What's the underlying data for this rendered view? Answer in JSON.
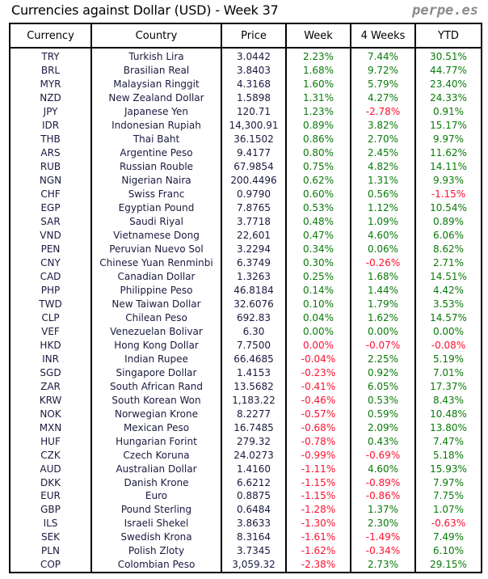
{
  "title": "Currencies against Dollar (USD) - Week 37",
  "brand": "perpe.es",
  "colors": {
    "positive": "#0a7a0a",
    "negative": "#ff1030"
  },
  "columns": [
    "Currency",
    "Country",
    "Price",
    "Week",
    "4 Weeks",
    "YTD"
  ],
  "rows": [
    {
      "code": "TRY",
      "country": "Turkish Lira",
      "price": "3.0442",
      "week": "2.23%",
      "w4": "7.44%",
      "ytd": "30.51%"
    },
    {
      "code": "BRL",
      "country": "Brasilian Real",
      "price": "3.8403",
      "week": "1.68%",
      "w4": "9.72%",
      "ytd": "44.77%"
    },
    {
      "code": "MYR",
      "country": "Malaysian Ringgit",
      "price": "4.3168",
      "week": "1.60%",
      "w4": "5.79%",
      "ytd": "23.40%"
    },
    {
      "code": "NZD",
      "country": "New Zealand Dollar",
      "price": "1.5898",
      "week": "1.31%",
      "w4": "4.27%",
      "ytd": "24.33%"
    },
    {
      "code": "JPY",
      "country": "Japanese Yen",
      "price": "120.71",
      "week": "1.23%",
      "w4": "-2.78%",
      "ytd": "0.91%"
    },
    {
      "code": "IDR",
      "country": "Indonesian Rupiah",
      "price": "14,300.91",
      "week": "0.89%",
      "w4": "3.82%",
      "ytd": "15.17%"
    },
    {
      "code": "THB",
      "country": "Thai Baht",
      "price": "36.1502",
      "week": "0.86%",
      "w4": "2.70%",
      "ytd": "9.97%"
    },
    {
      "code": "ARS",
      "country": "Argentine Peso",
      "price": "9.4177",
      "week": "0.80%",
      "w4": "2.45%",
      "ytd": "11.62%"
    },
    {
      "code": "RUB",
      "country": "Russian Rouble",
      "price": "67.9854",
      "week": "0.75%",
      "w4": "4.82%",
      "ytd": "14.11%"
    },
    {
      "code": "NGN",
      "country": "Nigerian Naira",
      "price": "200.4496",
      "week": "0.62%",
      "w4": "1.31%",
      "ytd": "9.93%"
    },
    {
      "code": "CHF",
      "country": "Swiss Franc",
      "price": "0.9790",
      "week": "0.60%",
      "w4": "0.56%",
      "ytd": "-1.15%"
    },
    {
      "code": "EGP",
      "country": "Egyptian Pound",
      "price": "7.8765",
      "week": "0.53%",
      "w4": "1.12%",
      "ytd": "10.54%"
    },
    {
      "code": "SAR",
      "country": "Saudi Riyal",
      "price": "3.7718",
      "week": "0.48%",
      "w4": "1.09%",
      "ytd": "0.89%"
    },
    {
      "code": "VND",
      "country": "Vietnamese Dong",
      "price": "22,601",
      "week": "0.47%",
      "w4": "4.60%",
      "ytd": "6.06%"
    },
    {
      "code": "PEN",
      "country": "Peruvian Nuevo Sol",
      "price": "3.2294",
      "week": "0.34%",
      "w4": "0.06%",
      "ytd": "8.62%"
    },
    {
      "code": "CNY",
      "country": "Chinese Yuan Renminbi",
      "price": "6.3749",
      "week": "0.30%",
      "w4": "-0.26%",
      "ytd": "2.71%"
    },
    {
      "code": "CAD",
      "country": "Canadian Dollar",
      "price": "1.3263",
      "week": "0.25%",
      "w4": "1.68%",
      "ytd": "14.51%"
    },
    {
      "code": "PHP",
      "country": "Philippine Peso",
      "price": "46.8184",
      "week": "0.14%",
      "w4": "1.44%",
      "ytd": "4.42%"
    },
    {
      "code": "TWD",
      "country": "New Taiwan Dollar",
      "price": "32.6076",
      "week": "0.10%",
      "w4": "1.79%",
      "ytd": "3.53%"
    },
    {
      "code": "CLP",
      "country": "Chilean Peso",
      "price": "692.83",
      "week": "0.04%",
      "w4": "1.62%",
      "ytd": "14.57%"
    },
    {
      "code": "VEF",
      "country": "Venezuelan Bolivar",
      "price": "6.30",
      "week": "0.00%",
      "w4": "0.00%",
      "ytd": "0.00%"
    },
    {
      "code": "HKD",
      "country": "Hong Kong Dollar",
      "price": "7.7500",
      "week": "0.00%",
      "w4": "-0.07%",
      "ytd": "-0.08%",
      "week_negative": true
    },
    {
      "code": "INR",
      "country": "Indian Rupee",
      "price": "66.4685",
      "week": "-0.04%",
      "w4": "2.25%",
      "ytd": "5.19%"
    },
    {
      "code": "SGD",
      "country": "Singapore Dollar",
      "price": "1.4153",
      "week": "-0.23%",
      "w4": "0.92%",
      "ytd": "7.01%"
    },
    {
      "code": "ZAR",
      "country": "South African Rand",
      "price": "13.5682",
      "week": "-0.41%",
      "w4": "6.05%",
      "ytd": "17.37%"
    },
    {
      "code": "KRW",
      "country": "South Korean Won",
      "price": "1,183.22",
      "week": "-0.46%",
      "w4": "0.53%",
      "ytd": "8.43%"
    },
    {
      "code": "NOK",
      "country": "Norwegian Krone",
      "price": "8.2277",
      "week": "-0.57%",
      "w4": "0.59%",
      "ytd": "10.48%"
    },
    {
      "code": "MXN",
      "country": "Mexican Peso",
      "price": "16.7485",
      "week": "-0.68%",
      "w4": "2.09%",
      "ytd": "13.80%"
    },
    {
      "code": "HUF",
      "country": "Hungarian Forint",
      "price": "279.32",
      "week": "-0.78%",
      "w4": "0.43%",
      "ytd": "7.47%"
    },
    {
      "code": "CZK",
      "country": "Czech Koruna",
      "price": "24.0273",
      "week": "-0.99%",
      "w4": "-0.69%",
      "ytd": "5.18%"
    },
    {
      "code": "AUD",
      "country": "Australian Dollar",
      "price": "1.4160",
      "week": "-1.11%",
      "w4": "4.60%",
      "ytd": "15.93%"
    },
    {
      "code": "DKK",
      "country": "Danish Krone",
      "price": "6.6212",
      "week": "-1.15%",
      "w4": "-0.89%",
      "ytd": "7.97%"
    },
    {
      "code": "EUR",
      "country": "Euro",
      "price": "0.8875",
      "week": "-1.15%",
      "w4": "-0.86%",
      "ytd": "7.75%"
    },
    {
      "code": "GBP",
      "country": "Pound Sterling",
      "price": "0.6484",
      "week": "-1.28%",
      "w4": "1.37%",
      "ytd": "1.07%"
    },
    {
      "code": "ILS",
      "country": "Israeli Shekel",
      "price": "3.8633",
      "week": "-1.30%",
      "w4": "2.30%",
      "ytd": "-0.63%"
    },
    {
      "code": "SEK",
      "country": "Swedish Krona",
      "price": "8.3164",
      "week": "-1.61%",
      "w4": "-1.49%",
      "ytd": "7.49%"
    },
    {
      "code": "PLN",
      "country": "Polish Zloty",
      "price": "3.7345",
      "week": "-1.62%",
      "w4": "-0.34%",
      "ytd": "6.10%"
    },
    {
      "code": "COP",
      "country": "Colombian Peso",
      "price": "3,059.32",
      "week": "-2.38%",
      "w4": "2.73%",
      "ytd": "29.15%"
    }
  ]
}
